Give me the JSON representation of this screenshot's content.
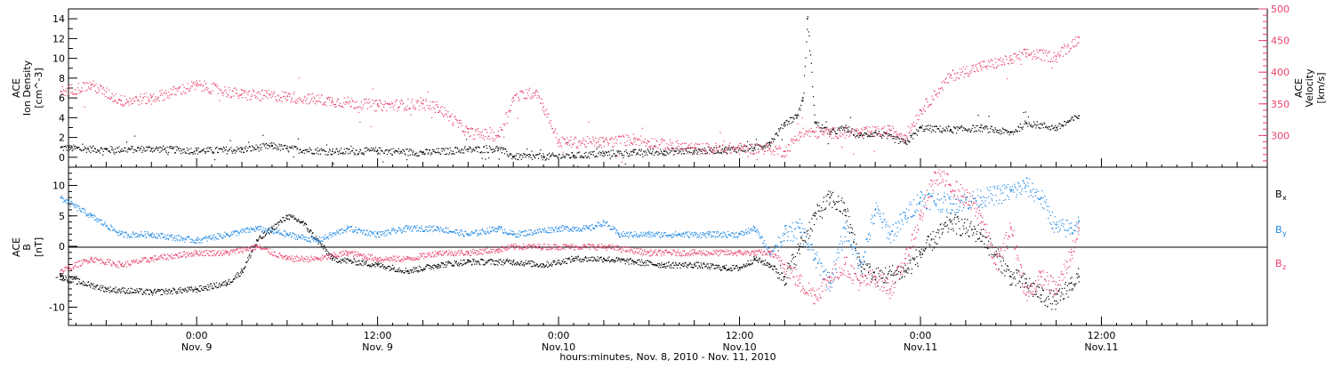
{
  "chart_data": [
    {
      "type": "scatter",
      "panel": "top",
      "ylabel_left": [
        "ACE",
        "Ion Density",
        "[cm^-3]"
      ],
      "ylabel_right": [
        "ACE",
        "Velocity",
        "[km/s]"
      ],
      "ylim_left": [
        -1,
        15
      ],
      "ylim_right": [
        250,
        500
      ],
      "yticks_left": [
        "0",
        "2",
        "4",
        "6",
        "8",
        "10",
        "12",
        "14"
      ],
      "yticks_right": [
        "300",
        "350",
        "400",
        "450",
        "500"
      ],
      "series": [
        {
          "axis": "left",
          "color": "#000000",
          "points": [
            [
              -9,
              1.0
            ],
            [
              -6,
              0.8
            ],
            [
              -3,
              0.9
            ],
            [
              0,
              0.7
            ],
            [
              3,
              0.8
            ],
            [
              5,
              1.2
            ],
            [
              6,
              0.9
            ],
            [
              9,
              0.6
            ],
            [
              12,
              0.7
            ],
            [
              15,
              0.5
            ],
            [
              18,
              0.8
            ],
            [
              20,
              0.9
            ],
            [
              21,
              0.1
            ],
            [
              23,
              0.1
            ],
            [
              25,
              0.2
            ],
            [
              27,
              0.4
            ],
            [
              29,
              0.5
            ],
            [
              31,
              0.6
            ],
            [
              33,
              0.7
            ],
            [
              35,
              0.8
            ],
            [
              37,
              1.0
            ],
            [
              38,
              1.5
            ],
            [
              39,
              3.5
            ],
            [
              39.8,
              4.2
            ],
            [
              40.2,
              6.0
            ],
            [
              40.5,
              14.0
            ],
            [
              41,
              3.5
            ],
            [
              42,
              2.5
            ],
            [
              43,
              3.0
            ],
            [
              44,
              2.2
            ],
            [
              45,
              2.5
            ],
            [
              47,
              1.5
            ],
            [
              48,
              3.0
            ],
            [
              50,
              2.8
            ],
            [
              52,
              3.0
            ],
            [
              54,
              2.5
            ],
            [
              55,
              3.5
            ],
            [
              57,
              3.0
            ],
            [
              58.5,
              4.2
            ]
          ]
        },
        {
          "axis": "right",
          "color": "#e8406a",
          "points": [
            [
              -9,
              370
            ],
            [
              -7,
              380
            ],
            [
              -5,
              355
            ],
            [
              -3,
              360
            ],
            [
              0,
              380
            ],
            [
              3,
              365
            ],
            [
              6,
              362
            ],
            [
              9,
              355
            ],
            [
              12,
              348
            ],
            [
              15,
              350
            ],
            [
              16,
              345
            ],
            [
              18,
              305
            ],
            [
              20,
              300
            ],
            [
              21,
              360
            ],
            [
              22.5,
              370
            ],
            [
              23,
              345
            ],
            [
              24,
              290
            ],
            [
              27,
              290
            ],
            [
              29,
              295
            ],
            [
              30,
              290
            ],
            [
              33,
              280
            ],
            [
              36,
              280
            ],
            [
              38,
              280
            ],
            [
              39,
              275
            ],
            [
              40,
              305
            ],
            [
              42,
              305
            ],
            [
              44,
              305
            ],
            [
              46,
              308
            ],
            [
              47,
              300
            ],
            [
              48,
              340
            ],
            [
              50,
              395
            ],
            [
              52,
              410
            ],
            [
              54,
              420
            ],
            [
              55,
              430
            ],
            [
              57,
              425
            ],
            [
              58.5,
              455
            ]
          ]
        }
      ]
    },
    {
      "type": "scatter",
      "panel": "bottom",
      "ylabel_left": [
        "ACE",
        "B",
        "[nT]"
      ],
      "ylim": [
        -13,
        13
      ],
      "yticks": [
        "-10",
        "-5",
        "0",
        "5",
        "10"
      ],
      "legend": [
        "Bx",
        "By",
        "Bz"
      ],
      "series": [
        {
          "name": "Bx",
          "color": "#000000",
          "points": [
            [
              -9,
              -5
            ],
            [
              -6,
              -7
            ],
            [
              -3,
              -7.5
            ],
            [
              0,
              -7
            ],
            [
              2,
              -6
            ],
            [
              3,
              -4
            ],
            [
              4,
              1
            ],
            [
              5,
              3
            ],
            [
              6,
              5
            ],
            [
              7,
              4
            ],
            [
              8,
              1
            ],
            [
              9,
              -2
            ],
            [
              12,
              -3
            ],
            [
              14,
              -4
            ],
            [
              16,
              -3
            ],
            [
              18,
              -2.5
            ],
            [
              21,
              -2.5
            ],
            [
              23,
              -3
            ],
            [
              25,
              -2
            ],
            [
              27,
              -2
            ],
            [
              29,
              -2.5
            ],
            [
              31,
              -3
            ],
            [
              33,
              -3
            ],
            [
              35,
              -3.5
            ],
            [
              36,
              -3.5
            ],
            [
              37,
              -2
            ],
            [
              38,
              -3
            ],
            [
              39,
              -5
            ],
            [
              40,
              0
            ],
            [
              41,
              5
            ],
            [
              42,
              8
            ],
            [
              43,
              6
            ],
            [
              44,
              -3
            ],
            [
              45,
              -5
            ],
            [
              47,
              -4
            ],
            [
              48,
              -1
            ],
            [
              50,
              4
            ],
            [
              52,
              2
            ],
            [
              54,
              -5
            ],
            [
              55,
              -6
            ],
            [
              56,
              -8
            ],
            [
              57,
              -9
            ],
            [
              58,
              -6
            ],
            [
              58.5,
              -5
            ]
          ]
        },
        {
          "name": "By",
          "color": "#1e88e5",
          "points": [
            [
              -9,
              8
            ],
            [
              -7,
              5
            ],
            [
              -5,
              2
            ],
            [
              -3,
              2
            ],
            [
              0,
              1
            ],
            [
              2,
              2
            ],
            [
              4,
              3
            ],
            [
              6,
              2
            ],
            [
              8,
              1
            ],
            [
              10,
              3
            ],
            [
              12,
              2
            ],
            [
              14,
              3
            ],
            [
              16,
              3
            ],
            [
              18,
              2
            ],
            [
              20,
              3
            ],
            [
              21,
              2
            ],
            [
              24,
              3
            ],
            [
              26,
              3
            ],
            [
              27,
              4
            ],
            [
              28,
              2
            ],
            [
              30,
              2
            ],
            [
              32,
              2
            ],
            [
              34,
              2
            ],
            [
              36,
              2
            ],
            [
              37,
              3
            ],
            [
              38,
              -1
            ],
            [
              39,
              2
            ],
            [
              40,
              3
            ],
            [
              41,
              -2
            ],
            [
              42,
              -6
            ],
            [
              43,
              3
            ],
            [
              44,
              -3
            ],
            [
              45,
              6
            ],
            [
              46,
              2
            ],
            [
              47,
              5
            ],
            [
              48,
              8
            ],
            [
              50,
              7
            ],
            [
              52,
              8
            ],
            [
              54,
              9
            ],
            [
              55,
              10
            ],
            [
              56,
              8
            ],
            [
              57,
              3
            ],
            [
              58,
              3
            ],
            [
              58.5,
              4
            ]
          ]
        },
        {
          "name": "Bz",
          "color": "#e8406a",
          "points": [
            [
              -9,
              -4
            ],
            [
              -7,
              -2
            ],
            [
              -5,
              -3
            ],
            [
              -3,
              -2
            ],
            [
              0,
              -1
            ],
            [
              2,
              -1
            ],
            [
              4,
              0
            ],
            [
              6,
              -2
            ],
            [
              8,
              -2
            ],
            [
              10,
              -1
            ],
            [
              12,
              -2
            ],
            [
              14,
              -2
            ],
            [
              16,
              -1
            ],
            [
              18,
              -1
            ],
            [
              20,
              -0.5
            ],
            [
              21,
              0
            ],
            [
              24,
              0
            ],
            [
              27,
              0
            ],
            [
              30,
              -1
            ],
            [
              33,
              -1
            ],
            [
              36,
              -1
            ],
            [
              37,
              -1
            ],
            [
              38,
              -1
            ],
            [
              39,
              -3
            ],
            [
              40,
              -6
            ],
            [
              41,
              -8
            ],
            [
              42,
              -5
            ],
            [
              43,
              -3
            ],
            [
              44,
              -6
            ],
            [
              45,
              -5
            ],
            [
              46,
              -7
            ],
            [
              47,
              -2
            ],
            [
              48,
              5
            ],
            [
              49,
              12
            ],
            [
              50,
              10
            ],
            [
              51,
              8
            ],
            [
              52,
              5
            ],
            [
              53,
              -3
            ],
            [
              54,
              3
            ],
            [
              55,
              -8
            ],
            [
              56,
              -5
            ],
            [
              57,
              -7
            ],
            [
              58,
              -1
            ],
            [
              58.5,
              3
            ]
          ]
        }
      ]
    }
  ],
  "xaxis": {
    "label": "hours:minutes, Nov.  8, 2010 - Nov. 11, 2010",
    "ticks": [
      {
        "hour": 0,
        "line1": "0:00",
        "line2": "Nov. 9"
      },
      {
        "hour": 12,
        "line1": "12:00",
        "line2": "Nov. 9"
      },
      {
        "hour": 24,
        "line1": "0:00",
        "line2": "Nov.10"
      },
      {
        "hour": 36,
        "line1": "12:00",
        "line2": "Nov.10"
      },
      {
        "hour": 48,
        "line1": "0:00",
        "line2": "Nov.11"
      },
      {
        "hour": 60,
        "line1": "12:00",
        "line2": "Nov.11"
      }
    ],
    "hour_range": [
      -8.5,
      71
    ]
  },
  "legend_labels": {
    "bx": {
      "main": "B",
      "sub": "x"
    },
    "by": {
      "main": "B",
      "sub": "y"
    },
    "bz": {
      "main": "B",
      "sub": "z"
    }
  },
  "colors": {
    "black": "#000000",
    "pink": "#e8406a",
    "blue": "#1e88e5"
  }
}
